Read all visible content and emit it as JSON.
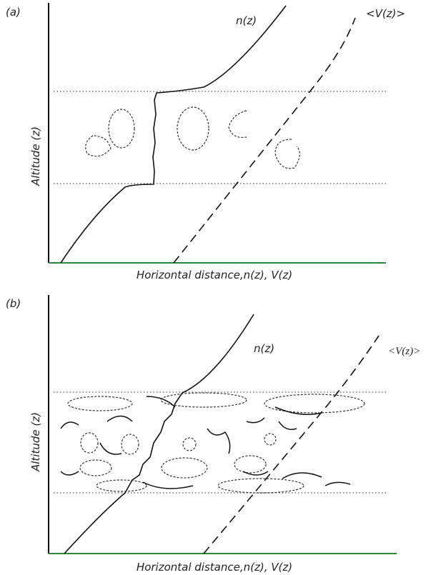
{
  "panels": [
    {
      "label": "(a)",
      "curve_n": "n(z)",
      "curve_v": "<V(z)>",
      "y_axis": "Altitude (z)",
      "x_axis": "Horizontal distance,n(z), V(z)"
    },
    {
      "label": "(b)",
      "curve_n": "n(z)",
      "curve_v": "<V(z)>",
      "y_axis": "Altitude (z)",
      "x_axis": "Horizontal distance,n(z), V(z)"
    }
  ]
}
